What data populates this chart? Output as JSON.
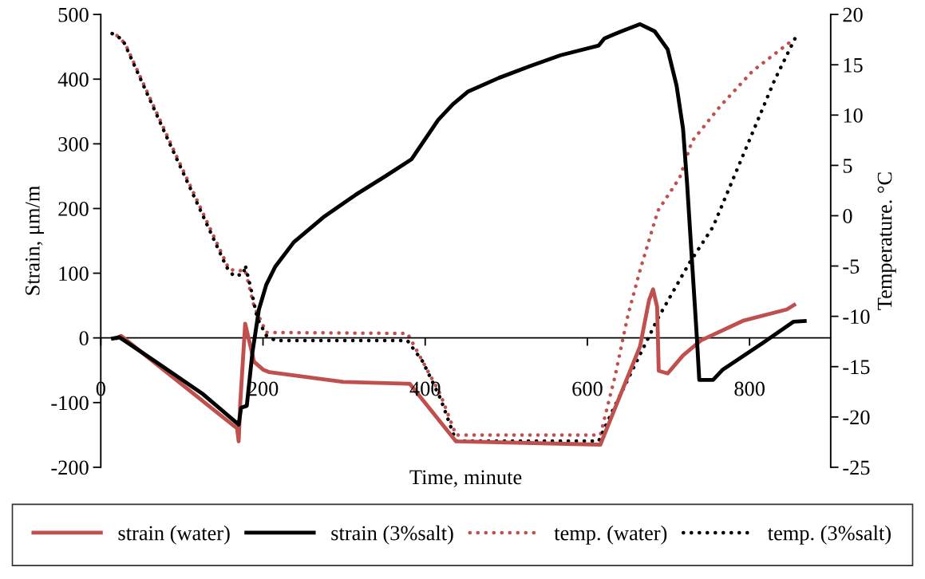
{
  "chart_data": {
    "type": "line",
    "xlabel": "Time, minute",
    "ylabel": "Strain, μm/m",
    "y2label": "Temperature. °C",
    "xlim": [
      0,
      900
    ],
    "xticks": [
      0,
      200,
      400,
      600,
      800
    ],
    "ylim": [
      -200,
      500
    ],
    "yticks": [
      -200,
      -100,
      0,
      100,
      200,
      300,
      400,
      500
    ],
    "y2lim": [
      -25,
      20
    ],
    "y2ticks": [
      -25,
      -20,
      -15,
      -10,
      -5,
      0,
      5,
      10,
      15,
      20
    ],
    "grid": false,
    "legend": "bottom",
    "marker": "none",
    "series": [
      {
        "name": "strain (water)",
        "color": "#c0504d",
        "line_style": "solid",
        "x": [
          20,
          25,
          168,
          170,
          172,
          178,
          189,
          200,
          208,
          299,
          381,
          438,
          616,
          642,
          665,
          676,
          681,
          686,
          688,
          699,
          718,
          740,
          793,
          846,
          855
        ],
        "values": [
          0,
          3,
          -140,
          -160,
          -100,
          22,
          -37,
          -49,
          -53,
          -68,
          -71,
          -160,
          -165,
          -84,
          -13,
          58,
          75,
          48,
          -51,
          -55,
          -27,
          -4,
          27,
          44,
          51
        ]
      },
      {
        "name": "strain (3%salt)",
        "color": "#000000",
        "line_style": "solid",
        "x": [
          15,
          23,
          68,
          125,
          170,
          173,
          180,
          187,
          195,
          204,
          215,
          238,
          276,
          314,
          351,
          383,
          416,
          434,
          453,
          491,
          529,
          567,
          614,
          621,
          642,
          665,
          683,
          699,
          710,
          718,
          723,
          729,
          735,
          738,
          755,
          767,
          816,
          854,
          868
        ],
        "values": [
          -1,
          1,
          -37,
          -86,
          -134,
          -108,
          -105,
          -22,
          44,
          82,
          110,
          148,
          188,
          221,
          250,
          276,
          337,
          361,
          381,
          402,
          420,
          437,
          452,
          463,
          474,
          485,
          474,
          446,
          390,
          323,
          238,
          119,
          1,
          -65,
          -65,
          -49,
          -8,
          25,
          26
        ]
      },
      {
        "name": "temp. (water)",
        "color": "#c0504d",
        "line_style": "dotted",
        "axis": "y2",
        "x": [
          20,
          30,
          90,
          158,
          168,
          178,
          189,
          204,
          378,
          389,
          419,
          438,
          616,
          634,
          650,
          665,
          687,
          714,
          729,
          764,
          804,
          854
        ],
        "values": [
          17.9,
          17.1,
          6.5,
          -5.3,
          -5.5,
          -5.4,
          -9.0,
          -11.6,
          -11.7,
          -13.3,
          -17.8,
          -21.8,
          -21.8,
          -16.0,
          -9.9,
          -5.4,
          0.5,
          3.8,
          7.4,
          10.9,
          14.4,
          17.5
        ]
      },
      {
        "name": "temp. (3%salt)",
        "color": "#000000",
        "line_style": "dotted",
        "axis": "y2",
        "x": [
          14,
          27,
          87,
          155,
          164,
          176,
          178,
          185,
          193,
          204,
          215,
          378,
          397,
          419,
          438,
          614,
          631,
          657,
          687,
          725,
          755,
          793,
          831,
          856
        ],
        "values": [
          18.1,
          17.5,
          6.8,
          -5.1,
          -6.0,
          -5.8,
          -4.9,
          -7.2,
          -10.2,
          -11.9,
          -12.4,
          -12.4,
          -14.5,
          -18.2,
          -22.4,
          -22.4,
          -19.4,
          -15.1,
          -10.2,
          -4.8,
          -1.1,
          6.2,
          13.5,
          17.6
        ]
      }
    ]
  }
}
